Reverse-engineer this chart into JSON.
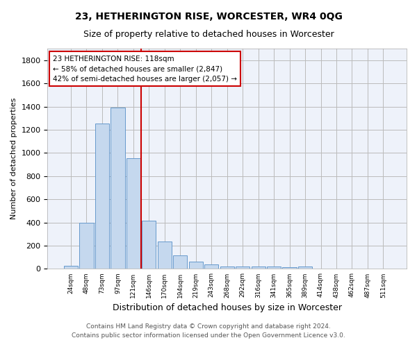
{
  "title": "23, HETHERINGTON RISE, WORCESTER, WR4 0QG",
  "subtitle": "Size of property relative to detached houses in Worcester",
  "xlabel": "Distribution of detached houses by size in Worcester",
  "ylabel": "Number of detached properties",
  "footer_line1": "Contains HM Land Registry data © Crown copyright and database right 2024.",
  "footer_line2": "Contains public sector information licensed under the Open Government Licence v3.0.",
  "bar_labels": [
    "24sqm",
    "48sqm",
    "73sqm",
    "97sqm",
    "121sqm",
    "146sqm",
    "170sqm",
    "194sqm",
    "219sqm",
    "243sqm",
    "268sqm",
    "292sqm",
    "316sqm",
    "341sqm",
    "365sqm",
    "389sqm",
    "414sqm",
    "438sqm",
    "462sqm",
    "487sqm",
    "511sqm"
  ],
  "bar_values": [
    25,
    395,
    1255,
    1390,
    955,
    415,
    235,
    115,
    62,
    40,
    18,
    18,
    18,
    18,
    12,
    18,
    0,
    0,
    0,
    0,
    0
  ],
  "bar_color": "#c5d8ee",
  "bar_edge_color": "#6699cc",
  "grid_color": "#bbbbbb",
  "bg_color": "#eef2fa",
  "red_line_color": "#cc0000",
  "annotation_text": "23 HETHERINGTON RISE: 118sqm\n← 58% of detached houses are smaller (2,847)\n42% of semi-detached houses are larger (2,057) →",
  "annotation_box_color": "#ffffff",
  "annotation_box_edge_color": "#cc0000",
  "ylim": [
    0,
    1900
  ],
  "yticks": [
    0,
    200,
    400,
    600,
    800,
    1000,
    1200,
    1400,
    1600,
    1800
  ]
}
